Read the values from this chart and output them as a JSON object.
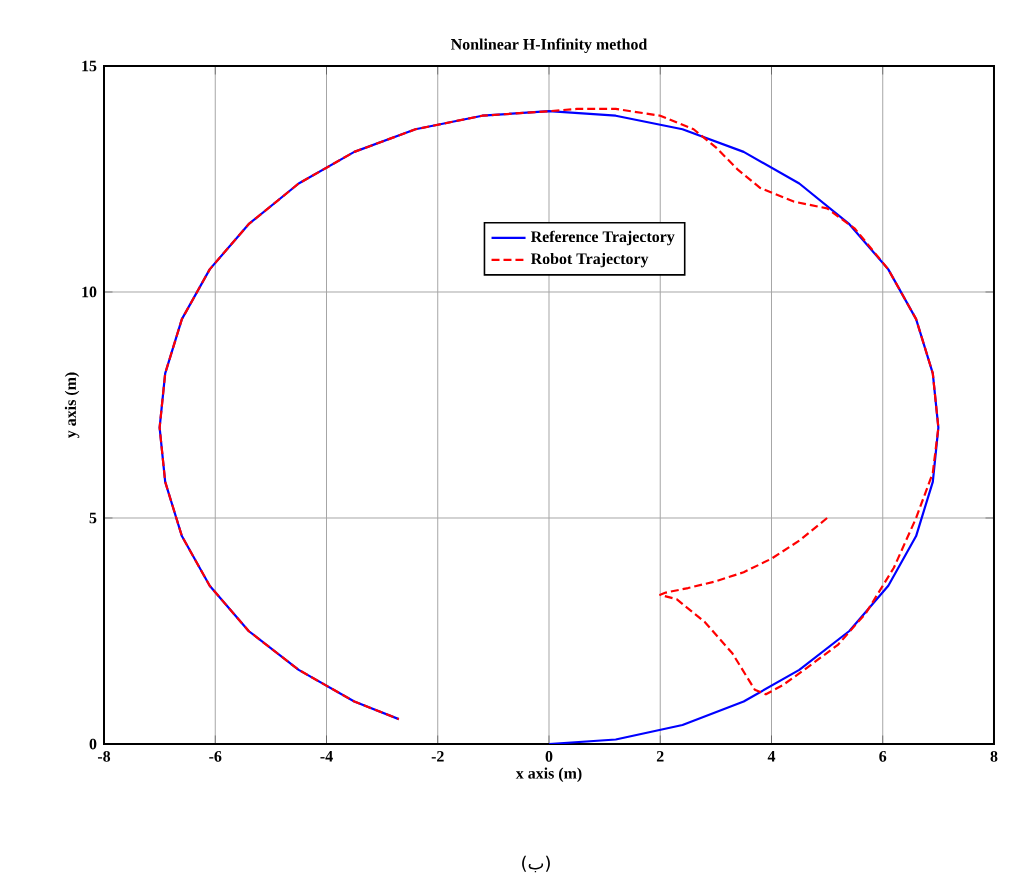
{
  "chart_data": {
    "type": "line",
    "title": "Nonlinear H-Infinity method",
    "xlabel": "x axis (m)",
    "ylabel": "y axis (m)",
    "annotations": [
      "(ب)"
    ],
    "xlim": [
      -8,
      8
    ],
    "ylim": [
      0,
      15
    ],
    "xticks": [
      -8,
      -6,
      -4,
      -2,
      0,
      2,
      4,
      6,
      8
    ],
    "yticks": [
      0,
      5,
      10,
      15
    ],
    "grid": true,
    "legend": "top",
    "series": [
      {
        "name": "Reference Trajectory",
        "color": "#0000ff",
        "line_style": "solid",
        "x": [
          0,
          1.2,
          2.4,
          3.5,
          4.5,
          5.4,
          6.1,
          6.6,
          6.9,
          7.0,
          6.9,
          6.6,
          6.1,
          5.4,
          4.5,
          3.5,
          2.4,
          1.2,
          0,
          -1.2,
          -2.4,
          -3.5,
          -4.5,
          -5.4,
          -6.1,
          -6.6,
          -6.9,
          -7.0,
          -6.9,
          -6.6,
          -6.1,
          -5.4,
          -4.5,
          -3.5,
          -2.7
        ],
        "values": [
          0,
          0.1,
          0.42,
          0.94,
          1.64,
          2.5,
          3.5,
          4.6,
          5.8,
          7.0,
          8.2,
          9.4,
          10.5,
          11.5,
          12.4,
          13.1,
          13.6,
          13.9,
          14,
          13.9,
          13.6,
          13.1,
          12.4,
          11.5,
          10.5,
          9.4,
          8.2,
          7.0,
          5.8,
          4.6,
          3.5,
          2.5,
          1.64,
          0.94,
          0.55
        ]
      },
      {
        "name": "Robot Trajectory",
        "color": "#ff0000",
        "line_style": "dashed",
        "x": [
          5,
          4.5,
          4,
          3.5,
          3,
          2.5,
          2.1,
          2,
          2.3,
          2.8,
          3.3,
          3.7,
          3.9,
          4.2,
          4.6,
          5.2,
          5.7,
          6.2,
          6.6,
          6.9,
          7.0,
          6.9,
          6.6,
          6.1,
          5.5,
          5.0,
          4.4,
          3.8,
          3.4,
          3.0,
          2.6,
          2.0,
          1.2,
          0.5,
          0,
          -1.2,
          -2.4,
          -3.5,
          -4.5,
          -5.4,
          -6.1,
          -6.6,
          -6.9,
          -7.0,
          -6.9,
          -6.6,
          -6.1,
          -5.4,
          -4.5,
          -3.5,
          -2.7
        ],
        "values": [
          5,
          4.5,
          4.1,
          3.8,
          3.6,
          3.45,
          3.35,
          3.3,
          3.2,
          2.7,
          2.0,
          1.2,
          1.1,
          1.3,
          1.65,
          2.2,
          2.9,
          3.9,
          5.0,
          6.0,
          7.0,
          8.2,
          9.4,
          10.5,
          11.4,
          11.85,
          12.0,
          12.3,
          12.7,
          13.2,
          13.6,
          13.9,
          14.05,
          14.05,
          14,
          13.9,
          13.6,
          13.1,
          12.4,
          11.5,
          10.5,
          9.4,
          8.2,
          7.0,
          5.8,
          4.6,
          3.5,
          2.5,
          1.64,
          0.94,
          0.55
        ]
      }
    ]
  }
}
